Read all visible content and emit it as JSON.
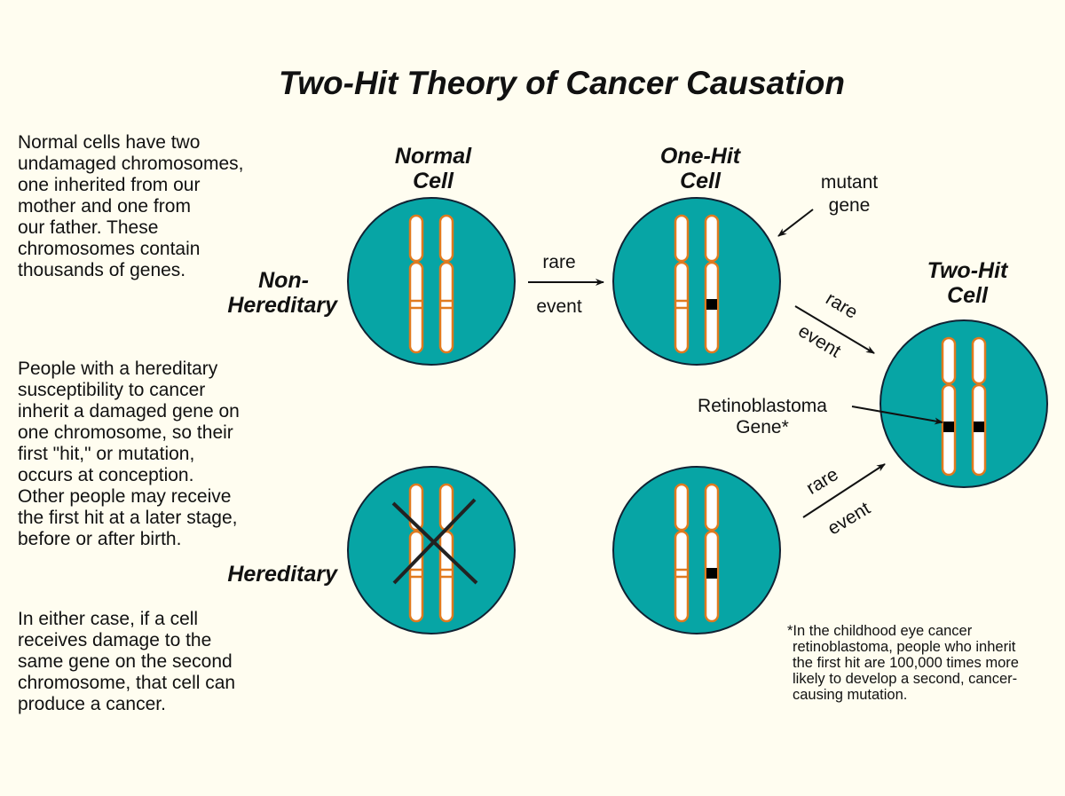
{
  "title": "Two-Hit Theory of Cancer Causation",
  "left_text": {
    "para1": [
      "Normal cells have two",
      "undamaged chromosomes,",
      "one inherited from our",
      "mother and one from",
      "our father.  These",
      "chromosomes contain",
      "thousands of genes."
    ],
    "para2": [
      "People with a hereditary",
      "susceptibility to cancer",
      "inherit a damaged gene on",
      "one chromosome, so their",
      "first \"hit,\" or mutation,",
      "occurs at conception.",
      "Other people may receive",
      "the first hit at a later stage,",
      "before or after birth."
    ],
    "para3": [
      "In either case, if a cell",
      "receives damage to the",
      "same gene on the second",
      "chromosome, that cell can",
      "produce a cancer."
    ]
  },
  "row_labels": {
    "non_hereditary": [
      "Non-",
      "Hereditary"
    ],
    "hereditary": "Hereditary"
  },
  "cells": {
    "normal": [
      "Normal",
      "Cell"
    ],
    "one_hit": [
      "One-Hit",
      "Cell"
    ],
    "two_hit": [
      "Two-Hit",
      "Cell"
    ]
  },
  "arrows": {
    "rare": "rare",
    "event": "event"
  },
  "labels": {
    "mutant_gene": [
      "mutant",
      "gene"
    ],
    "retinoblastoma": [
      "Retinoblastoma",
      "Gene*"
    ]
  },
  "footnote": [
    "*In the childhood eye cancer",
    "retinoblastoma, people who inherit",
    "the first hit are 100,000 times more",
    "likely to develop a second, cancer-",
    "causing mutation."
  ],
  "colors": {
    "cell": "#07a5a5",
    "chromosome_outline": "#e07a1f",
    "background": "#fffdf0"
  }
}
